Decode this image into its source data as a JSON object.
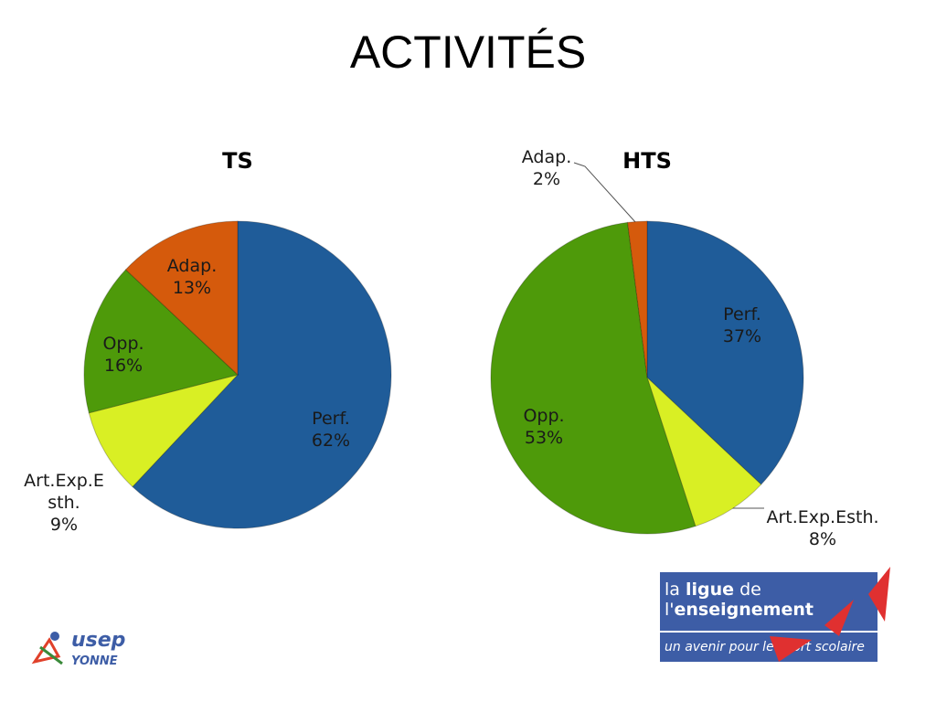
{
  "title": "ACTIVITÉS",
  "chart_data": [
    {
      "type": "pie",
      "title": "TS",
      "categories": [
        "Perf.",
        "Art.Exp.Esth.",
        "Opp.",
        "Adap."
      ],
      "values": [
        62,
        9,
        16,
        13
      ],
      "value_labels": [
        "62%",
        "9%",
        "16%",
        "13%"
      ],
      "colors": [
        "#1f5c99",
        "#d9ef24",
        "#4e9a0a",
        "#d55a0c"
      ]
    },
    {
      "type": "pie",
      "title": "HTS",
      "categories": [
        "Perf.",
        "Art.Exp.Esth.",
        "Opp.",
        "Adap."
      ],
      "values": [
        37,
        8,
        53,
        2
      ],
      "value_labels": [
        "37%",
        "8%",
        "53%",
        "2%"
      ],
      "colors": [
        "#1f5c99",
        "#d9ef24",
        "#4e9a0a",
        "#d55a0c"
      ]
    }
  ],
  "logos": {
    "la": "la",
    "ligue": "ligue",
    "de": "de",
    "l": "l'",
    "enseignement": "enseignement",
    "tagline": "un avenir pour le sport scolaire",
    "usep": "usep",
    "yonne": "YONNE"
  }
}
